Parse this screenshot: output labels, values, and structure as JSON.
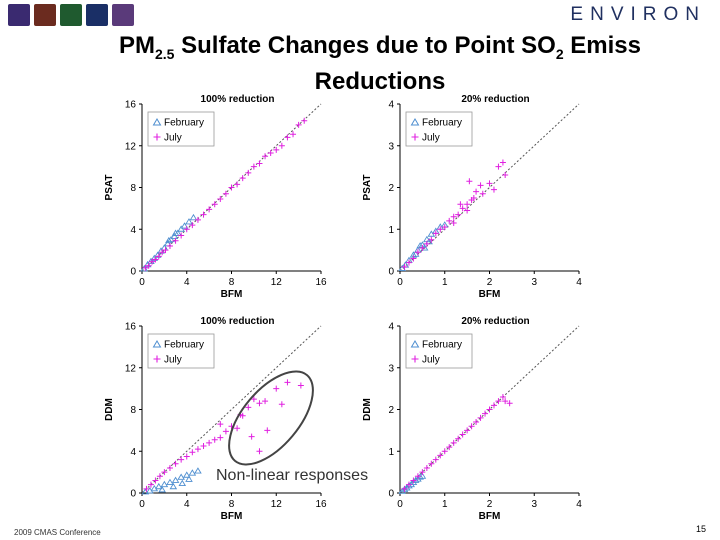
{
  "header": {
    "title_line1_a": "PM",
    "title_sub1": "2.5",
    "title_line1_b": " Sulfate Changes due to Point SO",
    "title_sub2": "2",
    "title_line1_c": " Emiss",
    "title_line2": "Reductions",
    "brand": "ENVIRON",
    "logo_colors": [
      "#3a2a70",
      "#6b2b1f",
      "#1f5a2f",
      "#1a2f66",
      "#5a3a7a"
    ]
  },
  "footer": {
    "conference": "2009 CMAS Conference",
    "page_number": "15"
  },
  "annotation": {
    "text": "Non-linear responses"
  },
  "colors": {
    "february": "#4f8fd0",
    "july": "#e020e0",
    "diag": "#555555",
    "ellipse": "#444444"
  },
  "chart_data": [
    {
      "type": "scatter",
      "title": "100% reduction",
      "xlabel": "BFM",
      "ylabel": "PSAT",
      "xlim": [
        0,
        16
      ],
      "ylim": [
        0,
        16
      ],
      "xticks": [
        "0",
        "4",
        "8",
        "12",
        "16"
      ],
      "yticks": [
        "0",
        "4",
        "8",
        "12",
        "16"
      ],
      "legend": [
        "February",
        "July"
      ],
      "series": [
        {
          "name": "February",
          "marker": "triangle",
          "points": [
            [
              0.2,
              0.2
            ],
            [
              0.5,
              0.6
            ],
            [
              0.8,
              0.9
            ],
            [
              1.1,
              1.2
            ],
            [
              1.4,
              1.5
            ],
            [
              1.7,
              1.9
            ],
            [
              2.0,
              2.2
            ],
            [
              2.3,
              2.6
            ],
            [
              2.6,
              3.0
            ],
            [
              2.9,
              3.3
            ],
            [
              3.2,
              3.6
            ],
            [
              3.5,
              4.0
            ],
            [
              3.8,
              4.3
            ],
            [
              4.2,
              4.7
            ],
            [
              4.6,
              5.1
            ],
            [
              3.0,
              3.6
            ],
            [
              2.4,
              2.9
            ]
          ]
        },
        {
          "name": "July",
          "marker": "plus",
          "points": [
            [
              0.3,
              0.3
            ],
            [
              0.6,
              0.5
            ],
            [
              0.9,
              0.9
            ],
            [
              1.2,
              1.1
            ],
            [
              1.5,
              1.4
            ],
            [
              1.8,
              1.8
            ],
            [
              2.1,
              2.0
            ],
            [
              2.5,
              2.4
            ],
            [
              3.0,
              2.9
            ],
            [
              3.5,
              3.4
            ],
            [
              4.0,
              4.0
            ],
            [
              4.5,
              4.4
            ],
            [
              5.0,
              4.9
            ],
            [
              5.5,
              5.4
            ],
            [
              6.0,
              5.9
            ],
            [
              6.5,
              6.4
            ],
            [
              7.0,
              6.9
            ],
            [
              7.5,
              7.4
            ],
            [
              8.0,
              8.0
            ],
            [
              8.5,
              8.3
            ],
            [
              9.0,
              8.9
            ],
            [
              9.5,
              9.4
            ],
            [
              10.0,
              10.0
            ],
            [
              10.5,
              10.3
            ],
            [
              11.0,
              11.0
            ],
            [
              11.5,
              11.3
            ],
            [
              12.0,
              11.6
            ],
            [
              12.5,
              12.0
            ],
            [
              13.0,
              12.8
            ],
            [
              13.5,
              13.1
            ],
            [
              14.0,
              14.0
            ],
            [
              14.5,
              14.4
            ]
          ]
        }
      ]
    },
    {
      "type": "scatter",
      "title": "20% reduction",
      "xlabel": "BFM",
      "ylabel": "PSAT",
      "xlim": [
        0,
        4
      ],
      "ylim": [
        0,
        4
      ],
      "xticks": [
        "0",
        "1",
        "2",
        "3",
        "4"
      ],
      "yticks": [
        "0",
        "1",
        "2",
        "3",
        "4"
      ],
      "legend": [
        "February",
        "July"
      ],
      "series": [
        {
          "name": "February",
          "marker": "triangle",
          "points": [
            [
              0.05,
              0.06
            ],
            [
              0.12,
              0.14
            ],
            [
              0.2,
              0.25
            ],
            [
              0.3,
              0.38
            ],
            [
              0.4,
              0.5
            ],
            [
              0.5,
              0.62
            ],
            [
              0.6,
              0.75
            ],
            [
              0.7,
              0.88
            ],
            [
              0.65,
              0.7
            ],
            [
              0.55,
              0.55
            ],
            [
              0.45,
              0.6
            ],
            [
              0.35,
              0.4
            ],
            [
              0.8,
              0.95
            ],
            [
              0.9,
              1.05
            ],
            [
              1.0,
              1.1
            ]
          ]
        },
        {
          "name": "July",
          "marker": "plus",
          "points": [
            [
              0.1,
              0.1
            ],
            [
              0.2,
              0.2
            ],
            [
              0.3,
              0.3
            ],
            [
              0.4,
              0.45
            ],
            [
              0.5,
              0.55
            ],
            [
              0.6,
              0.65
            ],
            [
              0.7,
              0.75
            ],
            [
              0.8,
              0.9
            ],
            [
              0.9,
              1.0
            ],
            [
              1.0,
              1.05
            ],
            [
              1.1,
              1.2
            ],
            [
              1.2,
              1.3
            ],
            [
              1.3,
              1.35
            ],
            [
              1.4,
              1.5
            ],
            [
              1.5,
              1.6
            ],
            [
              1.6,
              1.7
            ],
            [
              1.2,
              1.15
            ],
            [
              1.35,
              1.6
            ],
            [
              1.5,
              1.45
            ],
            [
              1.7,
              1.9
            ],
            [
              1.8,
              2.05
            ],
            [
              1.85,
              1.85
            ],
            [
              2.0,
              2.1
            ],
            [
              2.2,
              2.5
            ],
            [
              2.3,
              2.6
            ],
            [
              2.35,
              2.3
            ],
            [
              2.1,
              1.95
            ],
            [
              1.55,
              2.15
            ],
            [
              1.65,
              1.75
            ]
          ]
        }
      ]
    },
    {
      "type": "scatter",
      "title": "100% reduction",
      "xlabel": "BFM",
      "ylabel": "DDM",
      "xlim": [
        0,
        16
      ],
      "ylim": [
        0,
        16
      ],
      "xticks": [
        "0",
        "4",
        "8",
        "12",
        "16"
      ],
      "yticks": [
        "0",
        "4",
        "8",
        "12",
        "16"
      ],
      "legend": [
        "February",
        "July"
      ],
      "series": [
        {
          "name": "February",
          "marker": "triangle",
          "points": [
            [
              0.3,
              0.1
            ],
            [
              0.7,
              0.2
            ],
            [
              1.1,
              0.4
            ],
            [
              1.5,
              0.6
            ],
            [
              2.0,
              0.8
            ],
            [
              2.5,
              1.0
            ],
            [
              3.0,
              1.2
            ],
            [
              3.5,
              1.5
            ],
            [
              4.0,
              1.7
            ],
            [
              4.5,
              1.9
            ],
            [
              5.0,
              2.1
            ],
            [
              2.8,
              0.6
            ],
            [
              3.6,
              0.9
            ],
            [
              1.8,
              0.3
            ],
            [
              4.2,
              1.3
            ]
          ]
        },
        {
          "name": "July",
          "marker": "plus",
          "points": [
            [
              0.4,
              0.4
            ],
            [
              0.8,
              0.8
            ],
            [
              1.2,
              1.2
            ],
            [
              1.6,
              1.6
            ],
            [
              2.0,
              2.0
            ],
            [
              2.5,
              2.4
            ],
            [
              3.0,
              2.8
            ],
            [
              3.5,
              3.2
            ],
            [
              4.0,
              3.5
            ],
            [
              4.5,
              3.9
            ],
            [
              5.0,
              4.2
            ],
            [
              5.5,
              4.5
            ],
            [
              6.0,
              4.8
            ],
            [
              6.5,
              5.1
            ],
            [
              7.0,
              5.3
            ],
            [
              7.5,
              5.9
            ],
            [
              8.0,
              6.4
            ],
            [
              8.5,
              6.2
            ],
            [
              9.0,
              7.4
            ],
            [
              9.5,
              8.2
            ],
            [
              10.0,
              9.0
            ],
            [
              10.5,
              8.6
            ],
            [
              11.0,
              8.8
            ],
            [
              12.0,
              10.0
            ],
            [
              13.0,
              10.6
            ],
            [
              14.2,
              10.3
            ],
            [
              12.5,
              8.5
            ],
            [
              11.2,
              6.0
            ],
            [
              10.5,
              4.0
            ],
            [
              9.8,
              5.4
            ],
            [
              8.8,
              7.5
            ],
            [
              7.0,
              6.6
            ]
          ]
        }
      ]
    },
    {
      "type": "scatter",
      "title": "20% reduction",
      "xlabel": "BFM",
      "ylabel": "DDM",
      "xlim": [
        0,
        4
      ],
      "ylim": [
        0,
        4
      ],
      "xticks": [
        "0",
        "1",
        "2",
        "3",
        "4"
      ],
      "yticks": [
        "0",
        "1",
        "2",
        "3",
        "4"
      ],
      "legend": [
        "February",
        "July"
      ],
      "series": [
        {
          "name": "February",
          "marker": "triangle",
          "points": [
            [
              0.05,
              0.04
            ],
            [
              0.1,
              0.08
            ],
            [
              0.15,
              0.12
            ],
            [
              0.2,
              0.17
            ],
            [
              0.25,
              0.2
            ],
            [
              0.3,
              0.25
            ],
            [
              0.35,
              0.3
            ],
            [
              0.4,
              0.33
            ],
            [
              0.45,
              0.38
            ],
            [
              0.5,
              0.4
            ]
          ]
        },
        {
          "name": "July",
          "marker": "plus",
          "points": [
            [
              0.1,
              0.1
            ],
            [
              0.2,
              0.2
            ],
            [
              0.3,
              0.3
            ],
            [
              0.4,
              0.4
            ],
            [
              0.5,
              0.5
            ],
            [
              0.6,
              0.6
            ],
            [
              0.7,
              0.7
            ],
            [
              0.8,
              0.8
            ],
            [
              0.9,
              0.9
            ],
            [
              1.0,
              1.0
            ],
            [
              1.1,
              1.1
            ],
            [
              1.2,
              1.2
            ],
            [
              1.3,
              1.3
            ],
            [
              1.4,
              1.4
            ],
            [
              1.5,
              1.5
            ],
            [
              1.6,
              1.6
            ],
            [
              1.7,
              1.7
            ],
            [
              1.8,
              1.8
            ],
            [
              1.9,
              1.9
            ],
            [
              2.0,
              2.0
            ],
            [
              2.1,
              2.1
            ],
            [
              2.2,
              2.2
            ],
            [
              2.3,
              2.3
            ],
            [
              2.35,
              2.2
            ],
            [
              2.45,
              2.15
            ]
          ]
        }
      ]
    }
  ]
}
